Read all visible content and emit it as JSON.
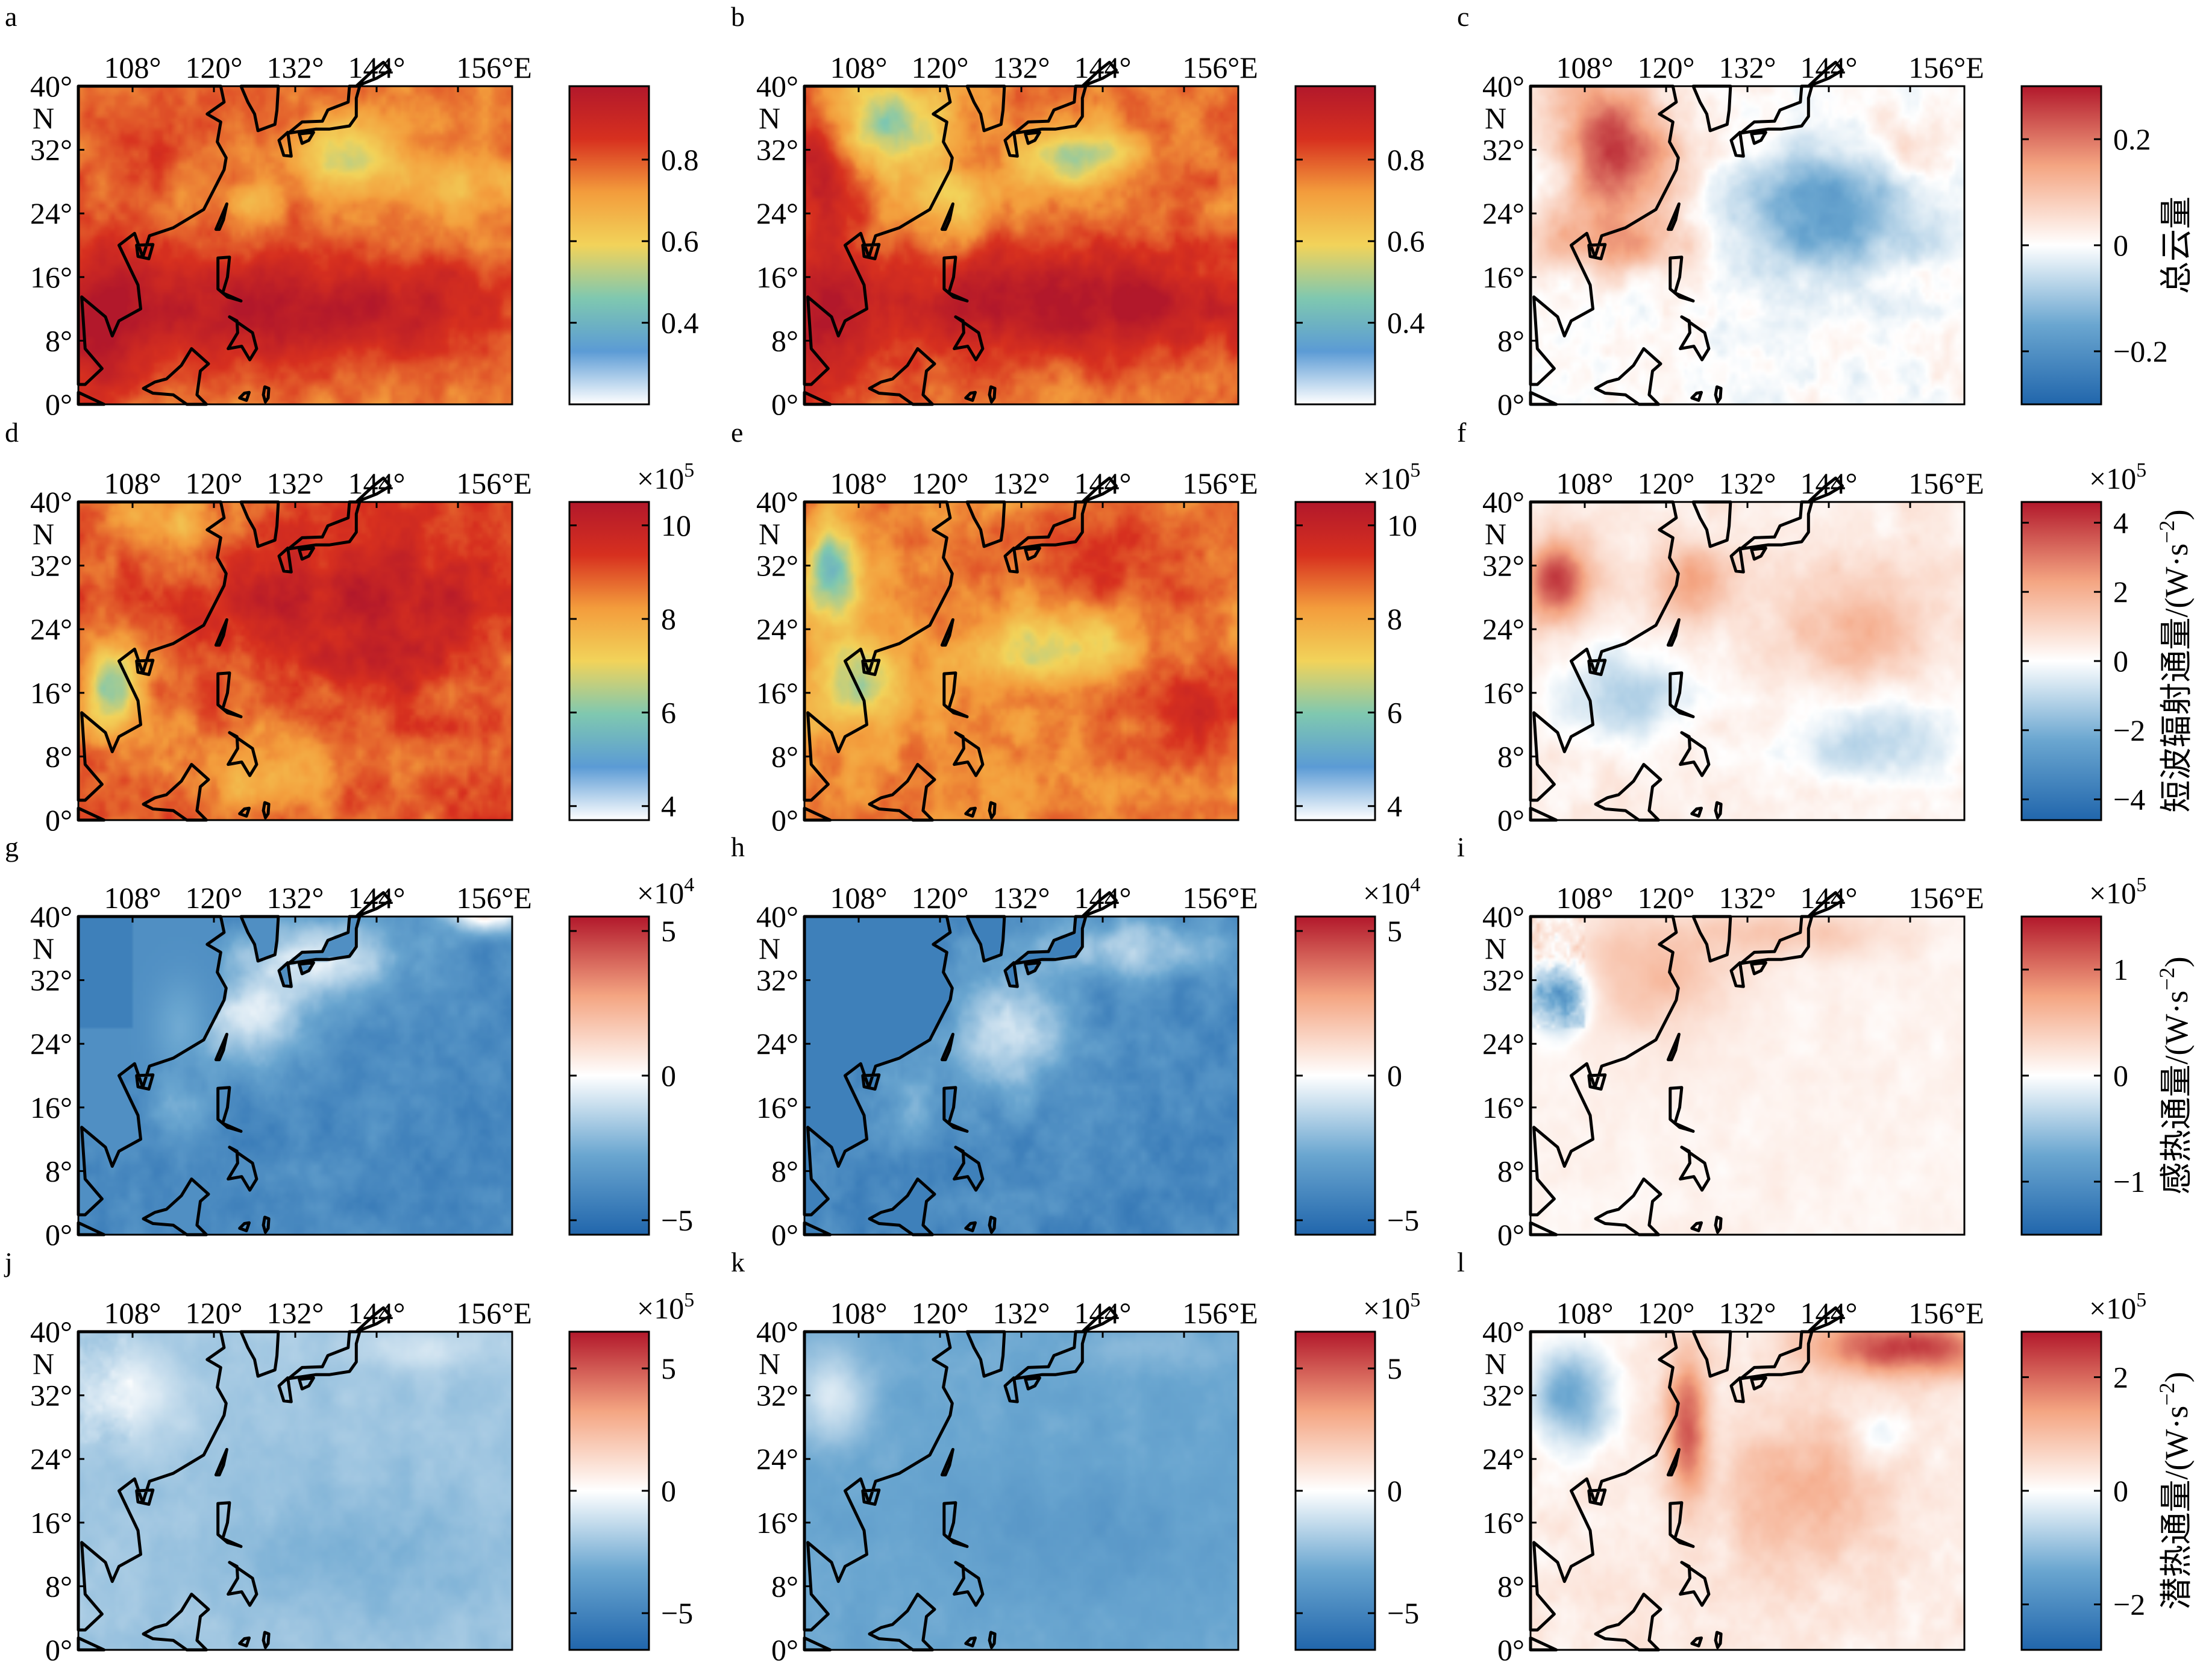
{
  "figure": {
    "lon_ticks": [
      "108°",
      "120°",
      "132°",
      "144°",
      "156°E"
    ],
    "lat_ticks": [
      "40°",
      "32°",
      "24°",
      "16°",
      "8°",
      "0°"
    ],
    "lat_unit": "N",
    "row_titles": [
      "总云量",
      "短波辐射通量/(W·s",
      "感热通量/(W·s",
      "潜热通量/(W·s"
    ],
    "row_title_exponent": "−2",
    "row_title_close": ")",
    "colormaps": {
      "sequential": [
        "#ffffff",
        "#5b9bd5",
        "#7fc8b0",
        "#f2d35a",
        "#f39c3c",
        "#d7301f",
        "#b2182b"
      ],
      "diverging": [
        "#2166ac",
        "#6aa6d0",
        "#ffffff",
        "#f4a582",
        "#b2182b"
      ]
    },
    "rows": [
      {
        "title_index": 0,
        "panels": [
          {
            "label": "a",
            "colorbar": {
              "type": "sequential",
              "ticks": [
                "0.8",
                "0.6",
                "0.4"
              ],
              "tick_values": [
                0.8,
                0.6,
                0.4
              ],
              "range": [
                0.2,
                0.98
              ],
              "multiplier": ""
            },
            "field": "cloud_a"
          },
          {
            "label": "b",
            "colorbar": {
              "type": "sequential",
              "ticks": [
                "0.8",
                "0.6",
                "0.4"
              ],
              "tick_values": [
                0.8,
                0.6,
                0.4
              ],
              "range": [
                0.2,
                0.98
              ],
              "multiplier": ""
            },
            "field": "cloud_b"
          },
          {
            "label": "c",
            "colorbar": {
              "type": "diverging",
              "ticks": [
                "0.2",
                "0",
                "−0.2"
              ],
              "tick_values": [
                0.2,
                0,
                -0.2
              ],
              "range": [
                -0.3,
                0.3
              ],
              "multiplier": ""
            },
            "field": "cloud_diff"
          }
        ]
      },
      {
        "title_index": 1,
        "panels": [
          {
            "label": "d",
            "colorbar": {
              "type": "sequential",
              "ticks": [
                "10",
                "8",
                "6",
                "4"
              ],
              "tick_values": [
                10,
                8,
                6,
                4
              ],
              "range": [
                3.7,
                10.5
              ],
              "multiplier": "×10",
              "exponent": "5"
            },
            "field": "sw_d"
          },
          {
            "label": "e",
            "colorbar": {
              "type": "sequential",
              "ticks": [
                "10",
                "8",
                "6",
                "4"
              ],
              "tick_values": [
                10,
                8,
                6,
                4
              ],
              "range": [
                3.7,
                10.5
              ],
              "multiplier": "×10",
              "exponent": "5"
            },
            "field": "sw_e"
          },
          {
            "label": "f",
            "colorbar": {
              "type": "diverging",
              "ticks": [
                "4",
                "2",
                "0",
                "−2",
                "−4"
              ],
              "tick_values": [
                4,
                2,
                0,
                -2,
                -4
              ],
              "range": [
                -4.6,
                4.6
              ],
              "multiplier": "×10",
              "exponent": "5"
            },
            "field": "sw_diff"
          }
        ]
      },
      {
        "title_index": 2,
        "panels": [
          {
            "label": "g",
            "colorbar": {
              "type": "diverging",
              "ticks": [
                "5",
                "0",
                "−5"
              ],
              "tick_values": [
                5,
                0,
                -5
              ],
              "range": [
                -5.5,
                5.5
              ],
              "multiplier": "×10",
              "exponent": "4"
            },
            "field": "sh_g"
          },
          {
            "label": "h",
            "colorbar": {
              "type": "diverging",
              "ticks": [
                "5",
                "0",
                "−5"
              ],
              "tick_values": [
                5,
                0,
                -5
              ],
              "range": [
                -5.5,
                5.5
              ],
              "multiplier": "×10",
              "exponent": "4"
            },
            "field": "sh_h"
          },
          {
            "label": "i",
            "colorbar": {
              "type": "diverging",
              "ticks": [
                "1",
                "0",
                "−1"
              ],
              "tick_values": [
                1,
                0,
                -1
              ],
              "range": [
                -1.5,
                1.5
              ],
              "multiplier": "×10",
              "exponent": "5"
            },
            "field": "sh_diff"
          }
        ]
      },
      {
        "title_index": 3,
        "panels": [
          {
            "label": "j",
            "colorbar": {
              "type": "diverging",
              "ticks": [
                "5",
                "0",
                "−5"
              ],
              "tick_values": [
                5,
                0,
                -5
              ],
              "range": [
                -6.5,
                6.5
              ],
              "multiplier": "×10",
              "exponent": "5"
            },
            "field": "lh_j"
          },
          {
            "label": "k",
            "colorbar": {
              "type": "diverging",
              "ticks": [
                "5",
                "0",
                "−5"
              ],
              "tick_values": [
                5,
                0,
                -5
              ],
              "range": [
                -6.5,
                6.5
              ],
              "multiplier": "×10",
              "exponent": "5"
            },
            "field": "lh_k"
          },
          {
            "label": "l",
            "colorbar": {
              "type": "diverging",
              "ticks": [
                "2",
                "0",
                "−2"
              ],
              "tick_values": [
                2,
                0,
                -2
              ],
              "range": [
                -2.8,
                2.8
              ],
              "multiplier": "×10",
              "exponent": "5"
            },
            "field": "lh_diff"
          }
        ]
      }
    ]
  }
}
